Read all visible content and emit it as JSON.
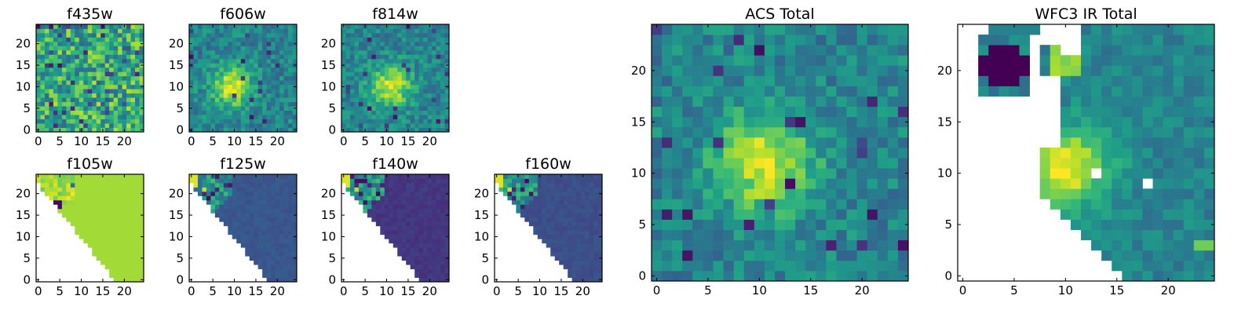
{
  "figure": {
    "description_colormap": "viridis"
  },
  "chart_data": [
    {
      "type": "heatmap",
      "title": "f435w",
      "xticks": [
        "0",
        "5",
        "10",
        "15",
        "20"
      ],
      "yticks": [
        "0",
        "5",
        "10",
        "15",
        "20"
      ],
      "grid_size": 25,
      "pattern": "noise",
      "masked": false
    },
    {
      "type": "heatmap",
      "title": "f606w",
      "xticks": [
        "0",
        "5",
        "10",
        "15",
        "20"
      ],
      "yticks": [
        "0",
        "5",
        "10",
        "15",
        "20"
      ],
      "grid_size": 25,
      "pattern": "blob",
      "blob_center": [
        9.5,
        10
      ],
      "masked": false
    },
    {
      "type": "heatmap",
      "title": "f814w",
      "xticks": [
        "0",
        "5",
        "10",
        "15",
        "20"
      ],
      "yticks": [
        "0",
        "5",
        "10",
        "15",
        "20"
      ],
      "grid_size": 25,
      "pattern": "blob",
      "blob_center": [
        11,
        10
      ],
      "masked": false
    },
    {
      "type": "heatmap",
      "title": "f105w",
      "xticks": [
        "0",
        "5",
        "10",
        "15",
        "20"
      ],
      "yticks": [
        "0",
        "5",
        "10",
        "15",
        "20"
      ],
      "grid_size": 25,
      "pattern": "flat",
      "base_level": 0.86,
      "masked": true
    },
    {
      "type": "heatmap",
      "title": "f125w",
      "xticks": [
        "0",
        "5",
        "10",
        "15",
        "20"
      ],
      "yticks": [
        "0",
        "5",
        "10",
        "15",
        "20"
      ],
      "grid_size": 25,
      "pattern": "corner",
      "base_level": 0.27,
      "masked": true
    },
    {
      "type": "heatmap",
      "title": "f140w",
      "xticks": [
        "0",
        "5",
        "10",
        "15",
        "20"
      ],
      "yticks": [
        "0",
        "5",
        "10",
        "15",
        "20"
      ],
      "grid_size": 25,
      "pattern": "corner",
      "base_level": 0.16,
      "masked": true
    },
    {
      "type": "heatmap",
      "title": "f160w",
      "xticks": [
        "0",
        "5",
        "10",
        "15",
        "20"
      ],
      "yticks": [
        "0",
        "5",
        "10",
        "15",
        "20"
      ],
      "grid_size": 25,
      "pattern": "corner",
      "base_level": 0.24,
      "masked": true
    },
    {
      "type": "heatmap",
      "title": "ACS Total",
      "xticks": [
        "0",
        "5",
        "10",
        "15",
        "20"
      ],
      "yticks": [
        "0",
        "5",
        "10",
        "15",
        "20"
      ],
      "grid_size": 25,
      "pattern": "blob",
      "blob_center": [
        10.5,
        11
      ],
      "masked": false
    },
    {
      "type": "heatmap",
      "title": "WFC3 IR Total",
      "xticks": [
        "0",
        "5",
        "10",
        "15",
        "20"
      ],
      "yticks": [
        "0",
        "5",
        "10",
        "15",
        "20"
      ],
      "grid_size": 25,
      "pattern": "ir_total",
      "masked": true
    }
  ]
}
